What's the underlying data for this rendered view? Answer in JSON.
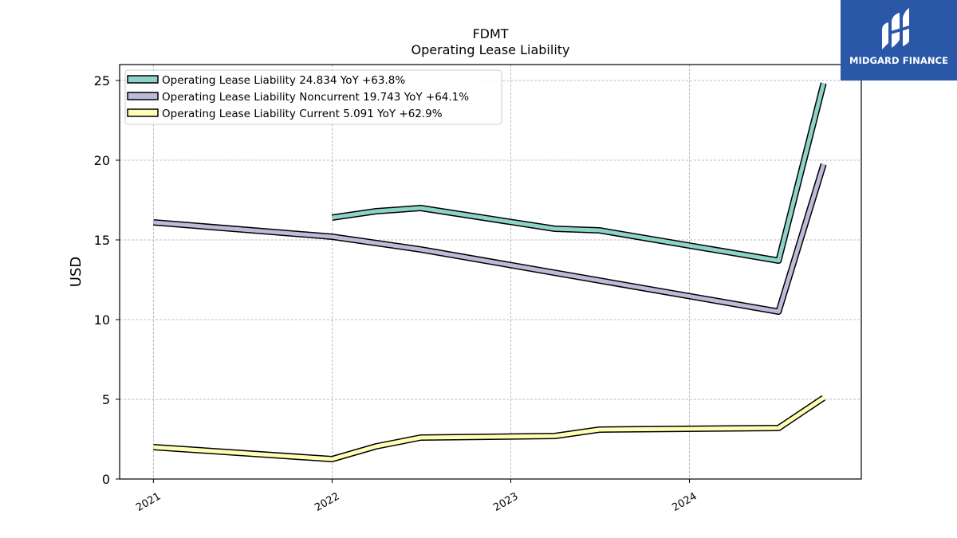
{
  "chart_data": {
    "type": "line",
    "title": "FDMT",
    "subtitle": "Operating Lease Liability",
    "ylabel": "USD",
    "xlabel": "",
    "ylim": [
      0,
      26
    ],
    "xlim": [
      "2020-10-24",
      "2024-12-17"
    ],
    "x_ticks": [
      "2021-01-01",
      "2022-01-01",
      "2023-01-01",
      "2024-01-01"
    ],
    "x_tick_labels": [
      "2021",
      "2022",
      "2023",
      "2024"
    ],
    "y_ticks": [
      0,
      5,
      10,
      15,
      20,
      25
    ],
    "y_tick_labels": [
      "0",
      "5",
      "10",
      "15",
      "20",
      "25"
    ],
    "grid": true,
    "legend_position": "top-left",
    "series": [
      {
        "name": "Operating Lease Liability  24.834 YoY +63.8%",
        "color": "#8dd3c7",
        "points": [
          [
            "2022-01-01",
            16.4
          ],
          [
            "2022-04-01",
            16.8
          ],
          [
            "2022-07-01",
            17.0
          ],
          [
            "2023-04-01",
            15.7
          ],
          [
            "2023-07-01",
            15.6
          ],
          [
            "2024-07-01",
            13.7
          ],
          [
            "2024-10-01",
            24.834
          ]
        ]
      },
      {
        "name": "Operating Lease Liability Noncurrent  19.743 YoY +64.1%",
        "color": "#bebada",
        "points": [
          [
            "2021-01-01",
            16.1
          ],
          [
            "2022-01-01",
            15.2
          ],
          [
            "2022-07-01",
            14.4
          ],
          [
            "2024-07-01",
            10.5
          ],
          [
            "2024-10-01",
            19.743
          ]
        ]
      },
      {
        "name": "Operating Lease Liability Current  5.091 YoY +62.9%",
        "color": "#ffffb3",
        "points": [
          [
            "2021-01-01",
            2.0
          ],
          [
            "2022-01-01",
            1.25
          ],
          [
            "2022-04-01",
            2.05
          ],
          [
            "2022-07-01",
            2.6
          ],
          [
            "2023-04-01",
            2.7
          ],
          [
            "2023-07-01",
            3.1
          ],
          [
            "2024-07-01",
            3.2
          ],
          [
            "2024-10-01",
            5.091
          ]
        ]
      }
    ]
  },
  "logo": {
    "text": "MIDGARD FINANCE",
    "color": "#2a57a8"
  }
}
